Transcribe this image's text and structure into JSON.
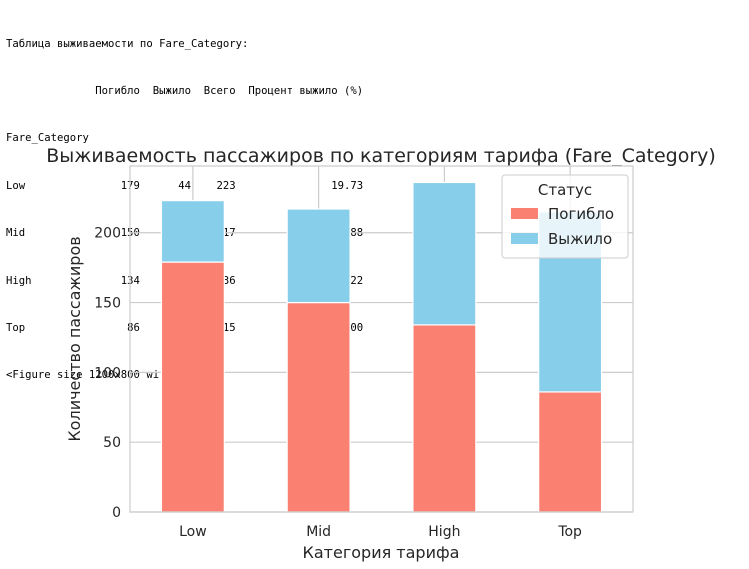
{
  "console_output": {
    "table_title": "Таблица выживаемости по Fare_Category:",
    "columns": [
      "Погибло",
      "Выжило",
      "Всего",
      "Процент выжило (%)"
    ],
    "index_name": "Fare_Category",
    "rows": [
      {
        "label": "Low",
        "values": [
          "179",
          "44",
          "223",
          "19.73"
        ]
      },
      {
        "label": "Mid",
        "values": [
          "150",
          "67",
          "217",
          "30.88"
        ]
      },
      {
        "label": "High",
        "values": [
          "134",
          "102",
          "236",
          "43.22"
        ]
      },
      {
        "label": "Top",
        "values": [
          "86",
          "129",
          "215",
          "60.00"
        ]
      }
    ],
    "figure_note": "<Figure size 1200x800 with 0 Axes>"
  },
  "chart_data": {
    "type": "bar",
    "stacked": true,
    "title": "Выживаемость пассажиров по категориям тарифа (Fare_Category)",
    "xlabel": "Категория тарифа",
    "ylabel": "Количество пассажиров",
    "categories": [
      "Low",
      "Mid",
      "High",
      "Top"
    ],
    "series": [
      {
        "name": "Погибло",
        "values": [
          179,
          150,
          134,
          86
        ],
        "color": "#fa8072"
      },
      {
        "name": "Выжило",
        "values": [
          44,
          67,
          102,
          129
        ],
        "color": "#87ceeb"
      }
    ],
    "yticks": [
      0,
      50,
      100,
      150,
      200
    ],
    "ylim": [
      0,
      247.8
    ],
    "grid": true,
    "legend": {
      "title": "Статус",
      "placement": "top-right"
    }
  }
}
